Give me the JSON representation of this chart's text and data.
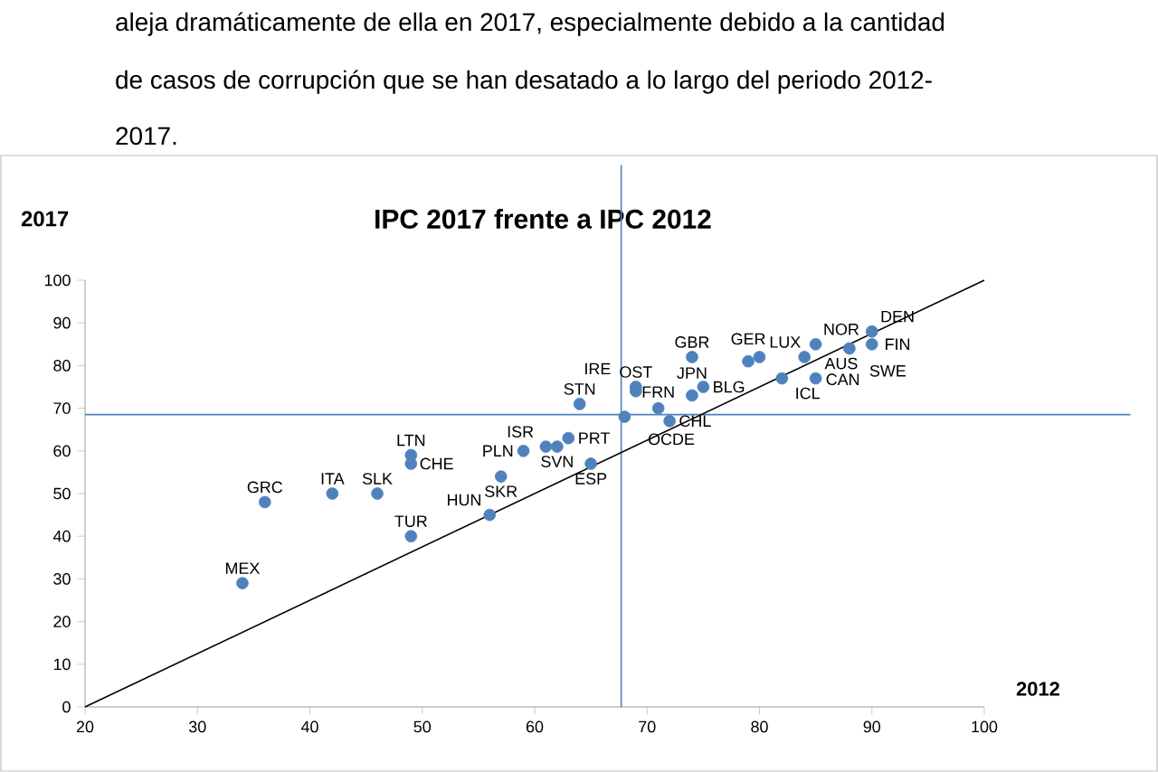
{
  "chart_data": {
    "type": "scatter",
    "title": "IPC 2017 frente a IPC 2012",
    "xlabel": "2012",
    "ylabel": "2017",
    "annotations": [
      "aleja dramáticamente de ella en 2017, especialmente debido a la cantidad",
      "de casos de corrupción que se han desatado a lo largo del periodo 2012-",
      "2017."
    ],
    "xlim": [
      20,
      100
    ],
    "ylim": [
      0,
      100
    ],
    "xticks": [
      20,
      30,
      40,
      50,
      60,
      70,
      80,
      90,
      100
    ],
    "yticks": [
      0,
      10,
      20,
      30,
      40,
      50,
      60,
      70,
      80,
      90,
      100
    ],
    "grid": false,
    "ref_lines": [
      {
        "axis": "x",
        "value": 67.7,
        "color": "#4f81bd"
      },
      {
        "axis": "y",
        "value": 68.5,
        "color": "#4f81bd"
      }
    ],
    "series": [
      {
        "marker": "circle",
        "color": "#4f81bd",
        "x": [
          34,
          36,
          42,
          46,
          49,
          49,
          49,
          56,
          57,
          59,
          61,
          62,
          63,
          65,
          64,
          68,
          72,
          71,
          74,
          75,
          69,
          69,
          74,
          79,
          80,
          84,
          82,
          85,
          85,
          88,
          90,
          90
        ],
        "values": [
          29,
          48,
          50,
          50,
          40,
          59,
          57,
          45,
          54,
          60,
          61,
          61,
          63,
          57,
          71,
          68,
          67,
          70,
          73,
          75,
          74,
          75,
          82,
          81,
          82,
          82,
          77,
          77,
          85,
          84,
          85,
          88
        ],
        "value_labels": [
          "MEX",
          "GRC",
          "ITA",
          "SLK",
          "TUR",
          "LTN",
          "CHE",
          "HUN",
          "SKR",
          "PLN",
          "ISR",
          "SVN",
          "PRT",
          "ESP",
          "STN",
          "OCDE",
          "CHL",
          "FRN",
          "JPN",
          "BLG",
          "IRE",
          "OST",
          "GBR",
          "GER",
          "LUX",
          "CAN",
          "ICL",
          "AUS",
          "NOR",
          "SWE",
          "FIN",
          "DEN"
        ]
      },
      {
        "type": "line",
        "marker": "none",
        "color": "#000000",
        "x": [
          20,
          100
        ],
        "values": [
          0,
          100
        ]
      }
    ]
  }
}
